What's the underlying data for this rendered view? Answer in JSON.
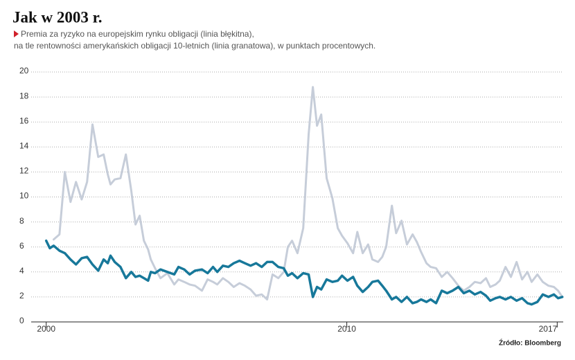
{
  "chart_data": {
    "type": "line",
    "title": "Jak w 2003 r.",
    "subtitle": [
      "Premia za ryzyko na europejskim rynku obligacji (linia błękitna),",
      "na tle rentowności amerykańskich obligacji 10-letnich (linia granatowa), w punktach procentowych."
    ],
    "source": "Źródło: Bloomberg",
    "x": [
      2000.0,
      2000.12,
      2000.25,
      2000.44,
      2000.62,
      2000.81,
      2000.99,
      2001.18,
      2001.36,
      2001.54,
      2001.73,
      2001.91,
      2002.05,
      2002.14,
      2002.28,
      2002.47,
      2002.65,
      2002.83,
      2002.97,
      2003.11,
      2003.25,
      2003.39,
      2003.48,
      2003.62,
      2003.8,
      2004.03,
      2004.26,
      2004.4,
      2004.59,
      2004.77,
      2004.95,
      2005.18,
      2005.37,
      2005.55,
      2005.69,
      2005.88,
      2006.06,
      2006.24,
      2006.43,
      2006.61,
      2006.8,
      2006.98,
      2007.17,
      2007.35,
      2007.53,
      2007.72,
      2007.9,
      2008.04,
      2008.18,
      2008.36,
      2008.55,
      2008.73,
      2008.87,
      2009.01,
      2009.15,
      2009.33,
      2009.52,
      2009.7,
      2009.84,
      2010.02,
      2010.21,
      2010.35,
      2010.53,
      2010.71,
      2010.85,
      2011.04,
      2011.18,
      2011.31,
      2011.5,
      2011.64,
      2011.82,
      2012.0,
      2012.19,
      2012.33,
      2012.47,
      2012.65,
      2012.79,
      2012.97,
      2013.16,
      2013.34,
      2013.52,
      2013.71,
      2013.89,
      2014.08,
      2014.26,
      2014.45,
      2014.63,
      2014.77,
      2014.95,
      2015.09,
      2015.28,
      2015.46,
      2015.65,
      2015.83,
      2016.01,
      2016.15,
      2016.34,
      2016.52,
      2016.71,
      2016.89,
      2017.03,
      2017.17
    ],
    "series": [
      {
        "color": "#c6cdd9",
        "values": [
          null,
          null,
          6.6,
          7.0,
          12.0,
          9.6,
          11.2,
          9.8,
          11.2,
          15.8,
          13.2,
          13.4,
          11.8,
          11.0,
          11.4,
          11.5,
          13.4,
          10.5,
          7.8,
          8.5,
          6.5,
          5.8,
          5.0,
          4.3,
          3.5,
          3.9,
          3.0,
          3.4,
          3.2,
          3.0,
          2.9,
          2.5,
          3.4,
          3.2,
          3.0,
          3.5,
          3.2,
          2.8,
          3.1,
          2.9,
          2.6,
          2.1,
          2.2,
          1.8,
          3.8,
          3.5,
          4.0,
          6.0,
          6.5,
          5.5,
          7.5,
          15.0,
          18.8,
          15.7,
          16.6,
          11.5,
          9.9,
          7.5,
          6.9,
          6.3,
          5.5,
          7.2,
          5.5,
          6.2,
          5.0,
          4.8,
          5.2,
          6.0,
          9.3,
          7.1,
          8.1,
          6.2,
          7.0,
          6.4,
          5.6,
          4.7,
          4.4,
          4.3,
          3.6,
          4.0,
          3.5,
          2.9,
          2.5,
          2.8,
          3.2,
          3.1,
          3.5,
          2.8,
          3.0,
          3.3,
          4.4,
          3.6,
          4.8,
          3.4,
          4.0,
          3.2,
          3.8,
          3.2,
          2.9,
          2.8,
          2.5,
          2.0
        ]
      },
      {
        "color": "#17789a",
        "values": [
          6.5,
          5.9,
          6.1,
          5.7,
          5.5,
          5.0,
          4.6,
          5.1,
          5.2,
          4.6,
          4.1,
          5.0,
          4.7,
          5.3,
          4.8,
          4.4,
          3.5,
          4.0,
          3.6,
          3.7,
          3.5,
          3.3,
          4.0,
          3.9,
          4.2,
          4.0,
          3.8,
          4.4,
          4.2,
          3.8,
          4.1,
          4.2,
          3.9,
          4.4,
          4.0,
          4.5,
          4.4,
          4.7,
          4.9,
          4.7,
          4.5,
          4.7,
          4.4,
          4.8,
          4.8,
          4.4,
          4.3,
          3.7,
          3.9,
          3.5,
          3.9,
          3.8,
          2.0,
          2.8,
          2.6,
          3.4,
          3.2,
          3.3,
          3.7,
          3.3,
          3.6,
          2.9,
          2.4,
          2.8,
          3.2,
          3.3,
          2.9,
          2.5,
          1.8,
          2.0,
          1.6,
          2.0,
          1.5,
          1.6,
          1.8,
          1.6,
          1.8,
          1.5,
          2.5,
          2.3,
          2.5,
          2.8,
          2.3,
          2.5,
          2.2,
          2.4,
          2.1,
          1.7,
          1.9,
          2.0,
          1.8,
          2.0,
          1.7,
          1.9,
          1.5,
          1.4,
          1.6,
          2.2,
          2.0,
          2.2,
          1.9,
          2.0
        ]
      }
    ],
    "xlim": [
      1999.5,
      2017.2
    ],
    "xticks": [
      2000,
      2010,
      2017
    ],
    "ylim": [
      0,
      20
    ],
    "yticks": [
      0,
      2,
      4,
      6,
      8,
      10,
      12,
      14,
      16,
      18,
      20
    ],
    "grid": true
  }
}
